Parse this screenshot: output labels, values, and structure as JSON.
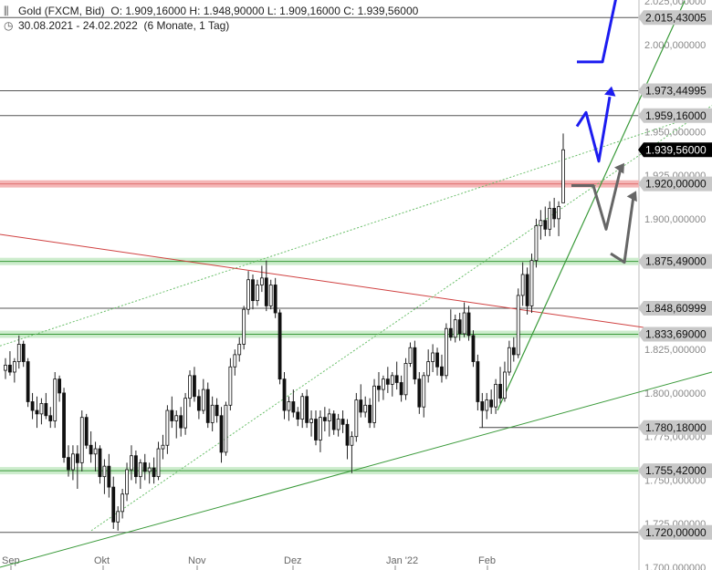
{
  "header": {
    "symbol_line": "Gold (FXCM, Bid)",
    "ohlc": "O: 1.909,16000   H: 1.948,90000   L: 1.909,16000   C: 1.939,56000",
    "period": "30.08.2021 - 24.02.2022",
    "period_detail": "(6 Monate, 1 Tag)"
  },
  "chart_data": {
    "type": "candlestick",
    "title": "Gold (FXCM, Bid)",
    "ylim": [
      1700,
      2025
    ],
    "y_ticks": [
      "2.025,000000",
      "2.000,000000",
      "1.975,000000",
      "1.950,000000",
      "1.925,000000",
      "1.900,000000",
      "1.875,000000",
      "1.850,000000",
      "1.825,000000",
      "1.800,000000",
      "1.775,000000",
      "1.750,000000",
      "1.725,000000",
      "1.700,000000"
    ],
    "x_ticks": [
      "Sep",
      "Okt",
      "Nov",
      "Dez",
      "Jan '22",
      "Feb"
    ],
    "last_price": {
      "value": 1939.56,
      "label": "1.939,56000"
    },
    "horizontal_levels": [
      {
        "value": 2015.43005,
        "label": "2.015,43005",
        "style": "line"
      },
      {
        "value": 1973.44995,
        "label": "1.973,44995",
        "style": "line"
      },
      {
        "value": 1959.16,
        "label": "1.959,16000",
        "style": "line"
      },
      {
        "value": 1920.0,
        "label": "1.920,00000",
        "style": "red-zone"
      },
      {
        "value": 1875.49,
        "label": "1.875,49000",
        "style": "green-zone"
      },
      {
        "value": 1848.60999,
        "label": "1.848,60999",
        "style": "line"
      },
      {
        "value": 1833.69,
        "label": "1.833,69000",
        "style": "green-zone"
      },
      {
        "value": 1780.18,
        "label": "1.780,18000",
        "style": "line"
      },
      {
        "value": 1755.42,
        "label": "1.755,42000",
        "style": "green-zone"
      },
      {
        "value": 1720.0,
        "label": "1.720,00000",
        "style": "line"
      }
    ],
    "candles": [
      {
        "o": 1813,
        "h": 1820,
        "l": 1808,
        "c": 1816
      },
      {
        "o": 1816,
        "h": 1824,
        "l": 1810,
        "c": 1812
      },
      {
        "o": 1812,
        "h": 1820,
        "l": 1806,
        "c": 1818
      },
      {
        "o": 1818,
        "h": 1833,
        "l": 1814,
        "c": 1828
      },
      {
        "o": 1828,
        "h": 1830,
        "l": 1815,
        "c": 1818
      },
      {
        "o": 1818,
        "h": 1820,
        "l": 1792,
        "c": 1795
      },
      {
        "o": 1795,
        "h": 1800,
        "l": 1785,
        "c": 1790
      },
      {
        "o": 1790,
        "h": 1798,
        "l": 1780,
        "c": 1788
      },
      {
        "o": 1788,
        "h": 1797,
        "l": 1782,
        "c": 1794
      },
      {
        "o": 1794,
        "h": 1800,
        "l": 1785,
        "c": 1787
      },
      {
        "o": 1787,
        "h": 1792,
        "l": 1780,
        "c": 1784
      },
      {
        "o": 1784,
        "h": 1812,
        "l": 1780,
        "c": 1808
      },
      {
        "o": 1808,
        "h": 1810,
        "l": 1795,
        "c": 1800
      },
      {
        "o": 1800,
        "h": 1803,
        "l": 1760,
        "c": 1763
      },
      {
        "o": 1763,
        "h": 1770,
        "l": 1752,
        "c": 1756
      },
      {
        "o": 1756,
        "h": 1770,
        "l": 1750,
        "c": 1765
      },
      {
        "o": 1765,
        "h": 1770,
        "l": 1745,
        "c": 1760
      },
      {
        "o": 1760,
        "h": 1790,
        "l": 1755,
        "c": 1786
      },
      {
        "o": 1786,
        "h": 1788,
        "l": 1768,
        "c": 1770
      },
      {
        "o": 1770,
        "h": 1778,
        "l": 1760,
        "c": 1765
      },
      {
        "o": 1765,
        "h": 1772,
        "l": 1755,
        "c": 1768
      },
      {
        "o": 1768,
        "h": 1770,
        "l": 1748,
        "c": 1752
      },
      {
        "o": 1752,
        "h": 1762,
        "l": 1742,
        "c": 1758
      },
      {
        "o": 1758,
        "h": 1765,
        "l": 1740,
        "c": 1746
      },
      {
        "o": 1746,
        "h": 1752,
        "l": 1722,
        "c": 1726
      },
      {
        "o": 1726,
        "h": 1735,
        "l": 1721,
        "c": 1732
      },
      {
        "o": 1732,
        "h": 1745,
        "l": 1728,
        "c": 1742
      },
      {
        "o": 1742,
        "h": 1760,
        "l": 1738,
        "c": 1756
      },
      {
        "o": 1756,
        "h": 1770,
        "l": 1750,
        "c": 1764
      },
      {
        "o": 1764,
        "h": 1767,
        "l": 1748,
        "c": 1752
      },
      {
        "o": 1752,
        "h": 1762,
        "l": 1745,
        "c": 1760
      },
      {
        "o": 1760,
        "h": 1765,
        "l": 1750,
        "c": 1755
      },
      {
        "o": 1755,
        "h": 1760,
        "l": 1748,
        "c": 1757
      },
      {
        "o": 1757,
        "h": 1763,
        "l": 1748,
        "c": 1752
      },
      {
        "o": 1752,
        "h": 1772,
        "l": 1750,
        "c": 1768
      },
      {
        "o": 1768,
        "h": 1776,
        "l": 1762,
        "c": 1770
      },
      {
        "o": 1770,
        "h": 1793,
        "l": 1765,
        "c": 1790
      },
      {
        "o": 1790,
        "h": 1798,
        "l": 1780,
        "c": 1784
      },
      {
        "o": 1784,
        "h": 1790,
        "l": 1774,
        "c": 1787
      },
      {
        "o": 1787,
        "h": 1792,
        "l": 1775,
        "c": 1780
      },
      {
        "o": 1780,
        "h": 1800,
        "l": 1776,
        "c": 1797
      },
      {
        "o": 1797,
        "h": 1813,
        "l": 1792,
        "c": 1810
      },
      {
        "o": 1810,
        "h": 1815,
        "l": 1795,
        "c": 1798
      },
      {
        "o": 1798,
        "h": 1802,
        "l": 1785,
        "c": 1790
      },
      {
        "o": 1790,
        "h": 1808,
        "l": 1788,
        "c": 1802
      },
      {
        "o": 1802,
        "h": 1806,
        "l": 1780,
        "c": 1783
      },
      {
        "o": 1783,
        "h": 1798,
        "l": 1778,
        "c": 1793
      },
      {
        "o": 1793,
        "h": 1797,
        "l": 1783,
        "c": 1787
      },
      {
        "o": 1787,
        "h": 1792,
        "l": 1760,
        "c": 1766
      },
      {
        "o": 1766,
        "h": 1795,
        "l": 1764,
        "c": 1793
      },
      {
        "o": 1793,
        "h": 1820,
        "l": 1790,
        "c": 1815
      },
      {
        "o": 1815,
        "h": 1825,
        "l": 1810,
        "c": 1822
      },
      {
        "o": 1822,
        "h": 1832,
        "l": 1818,
        "c": 1828
      },
      {
        "o": 1828,
        "h": 1850,
        "l": 1825,
        "c": 1848
      },
      {
        "o": 1848,
        "h": 1870,
        "l": 1845,
        "c": 1865
      },
      {
        "o": 1865,
        "h": 1868,
        "l": 1848,
        "c": 1853
      },
      {
        "o": 1853,
        "h": 1865,
        "l": 1850,
        "c": 1862
      },
      {
        "o": 1862,
        "h": 1873,
        "l": 1858,
        "c": 1866
      },
      {
        "o": 1866,
        "h": 1876,
        "l": 1847,
        "c": 1850
      },
      {
        "o": 1850,
        "h": 1865,
        "l": 1848,
        "c": 1862
      },
      {
        "o": 1862,
        "h": 1866,
        "l": 1843,
        "c": 1846
      },
      {
        "o": 1846,
        "h": 1848,
        "l": 1805,
        "c": 1808
      },
      {
        "o": 1808,
        "h": 1812,
        "l": 1785,
        "c": 1790
      },
      {
        "o": 1790,
        "h": 1798,
        "l": 1784,
        "c": 1795
      },
      {
        "o": 1795,
        "h": 1802,
        "l": 1786,
        "c": 1789
      },
      {
        "o": 1789,
        "h": 1792,
        "l": 1781,
        "c": 1785
      },
      {
        "o": 1785,
        "h": 1800,
        "l": 1780,
        "c": 1798
      },
      {
        "o": 1798,
        "h": 1802,
        "l": 1780,
        "c": 1783
      },
      {
        "o": 1783,
        "h": 1790,
        "l": 1775,
        "c": 1785
      },
      {
        "o": 1785,
        "h": 1790,
        "l": 1770,
        "c": 1773
      },
      {
        "o": 1773,
        "h": 1790,
        "l": 1766,
        "c": 1786
      },
      {
        "o": 1786,
        "h": 1792,
        "l": 1778,
        "c": 1784
      },
      {
        "o": 1784,
        "h": 1791,
        "l": 1775,
        "c": 1788
      },
      {
        "o": 1788,
        "h": 1790,
        "l": 1776,
        "c": 1779
      },
      {
        "o": 1779,
        "h": 1788,
        "l": 1775,
        "c": 1785
      },
      {
        "o": 1785,
        "h": 1790,
        "l": 1777,
        "c": 1782
      },
      {
        "o": 1782,
        "h": 1785,
        "l": 1762,
        "c": 1770
      },
      {
        "o": 1770,
        "h": 1778,
        "l": 1754,
        "c": 1775
      },
      {
        "o": 1775,
        "h": 1800,
        "l": 1772,
        "c": 1796
      },
      {
        "o": 1796,
        "h": 1805,
        "l": 1786,
        "c": 1789
      },
      {
        "o": 1789,
        "h": 1798,
        "l": 1786,
        "c": 1793
      },
      {
        "o": 1793,
        "h": 1797,
        "l": 1780,
        "c": 1783
      },
      {
        "o": 1783,
        "h": 1808,
        "l": 1780,
        "c": 1804
      },
      {
        "o": 1804,
        "h": 1812,
        "l": 1795,
        "c": 1802
      },
      {
        "o": 1802,
        "h": 1810,
        "l": 1796,
        "c": 1808
      },
      {
        "o": 1808,
        "h": 1815,
        "l": 1800,
        "c": 1805
      },
      {
        "o": 1805,
        "h": 1812,
        "l": 1798,
        "c": 1810
      },
      {
        "o": 1810,
        "h": 1818,
        "l": 1802,
        "c": 1806
      },
      {
        "o": 1806,
        "h": 1810,
        "l": 1795,
        "c": 1799
      },
      {
        "o": 1799,
        "h": 1820,
        "l": 1796,
        "c": 1817
      },
      {
        "o": 1817,
        "h": 1829,
        "l": 1815,
        "c": 1826
      },
      {
        "o": 1826,
        "h": 1830,
        "l": 1805,
        "c": 1808
      },
      {
        "o": 1808,
        "h": 1812,
        "l": 1788,
        "c": 1792
      },
      {
        "o": 1792,
        "h": 1812,
        "l": 1786,
        "c": 1810
      },
      {
        "o": 1810,
        "h": 1825,
        "l": 1806,
        "c": 1818
      },
      {
        "o": 1818,
        "h": 1828,
        "l": 1812,
        "c": 1823
      },
      {
        "o": 1823,
        "h": 1826,
        "l": 1810,
        "c": 1815
      },
      {
        "o": 1815,
        "h": 1822,
        "l": 1806,
        "c": 1810
      },
      {
        "o": 1810,
        "h": 1840,
        "l": 1808,
        "c": 1837
      },
      {
        "o": 1837,
        "h": 1848,
        "l": 1830,
        "c": 1832
      },
      {
        "o": 1832,
        "h": 1845,
        "l": 1829,
        "c": 1842
      },
      {
        "o": 1842,
        "h": 1846,
        "l": 1830,
        "c": 1834
      },
      {
        "o": 1834,
        "h": 1852,
        "l": 1832,
        "c": 1846
      },
      {
        "o": 1846,
        "h": 1850,
        "l": 1830,
        "c": 1833
      },
      {
        "o": 1833,
        "h": 1836,
        "l": 1815,
        "c": 1818
      },
      {
        "o": 1818,
        "h": 1822,
        "l": 1790,
        "c": 1795
      },
      {
        "o": 1795,
        "h": 1800,
        "l": 1780,
        "c": 1790
      },
      {
        "o": 1790,
        "h": 1800,
        "l": 1785,
        "c": 1796
      },
      {
        "o": 1796,
        "h": 1802,
        "l": 1788,
        "c": 1792
      },
      {
        "o": 1792,
        "h": 1808,
        "l": 1788,
        "c": 1805
      },
      {
        "o": 1805,
        "h": 1815,
        "l": 1794,
        "c": 1797
      },
      {
        "o": 1797,
        "h": 1818,
        "l": 1795,
        "c": 1812
      },
      {
        "o": 1812,
        "h": 1830,
        "l": 1810,
        "c": 1826
      },
      {
        "o": 1826,
        "h": 1832,
        "l": 1818,
        "c": 1822
      },
      {
        "o": 1822,
        "h": 1860,
        "l": 1820,
        "c": 1856
      },
      {
        "o": 1856,
        "h": 1875,
        "l": 1850,
        "c": 1868
      },
      {
        "o": 1868,
        "h": 1872,
        "l": 1845,
        "c": 1850
      },
      {
        "o": 1850,
        "h": 1880,
        "l": 1846,
        "c": 1876
      },
      {
        "o": 1876,
        "h": 1900,
        "l": 1872,
        "c": 1896
      },
      {
        "o": 1896,
        "h": 1905,
        "l": 1888,
        "c": 1899
      },
      {
        "o": 1899,
        "h": 1907,
        "l": 1890,
        "c": 1894
      },
      {
        "o": 1894,
        "h": 1910,
        "l": 1890,
        "c": 1906
      },
      {
        "o": 1906,
        "h": 1912,
        "l": 1895,
        "c": 1900
      },
      {
        "o": 1900,
        "h": 1910,
        "l": 1890,
        "c": 1907
      },
      {
        "o": 1909.16,
        "h": 1948.9,
        "l": 1909.16,
        "c": 1939.56
      }
    ]
  }
}
